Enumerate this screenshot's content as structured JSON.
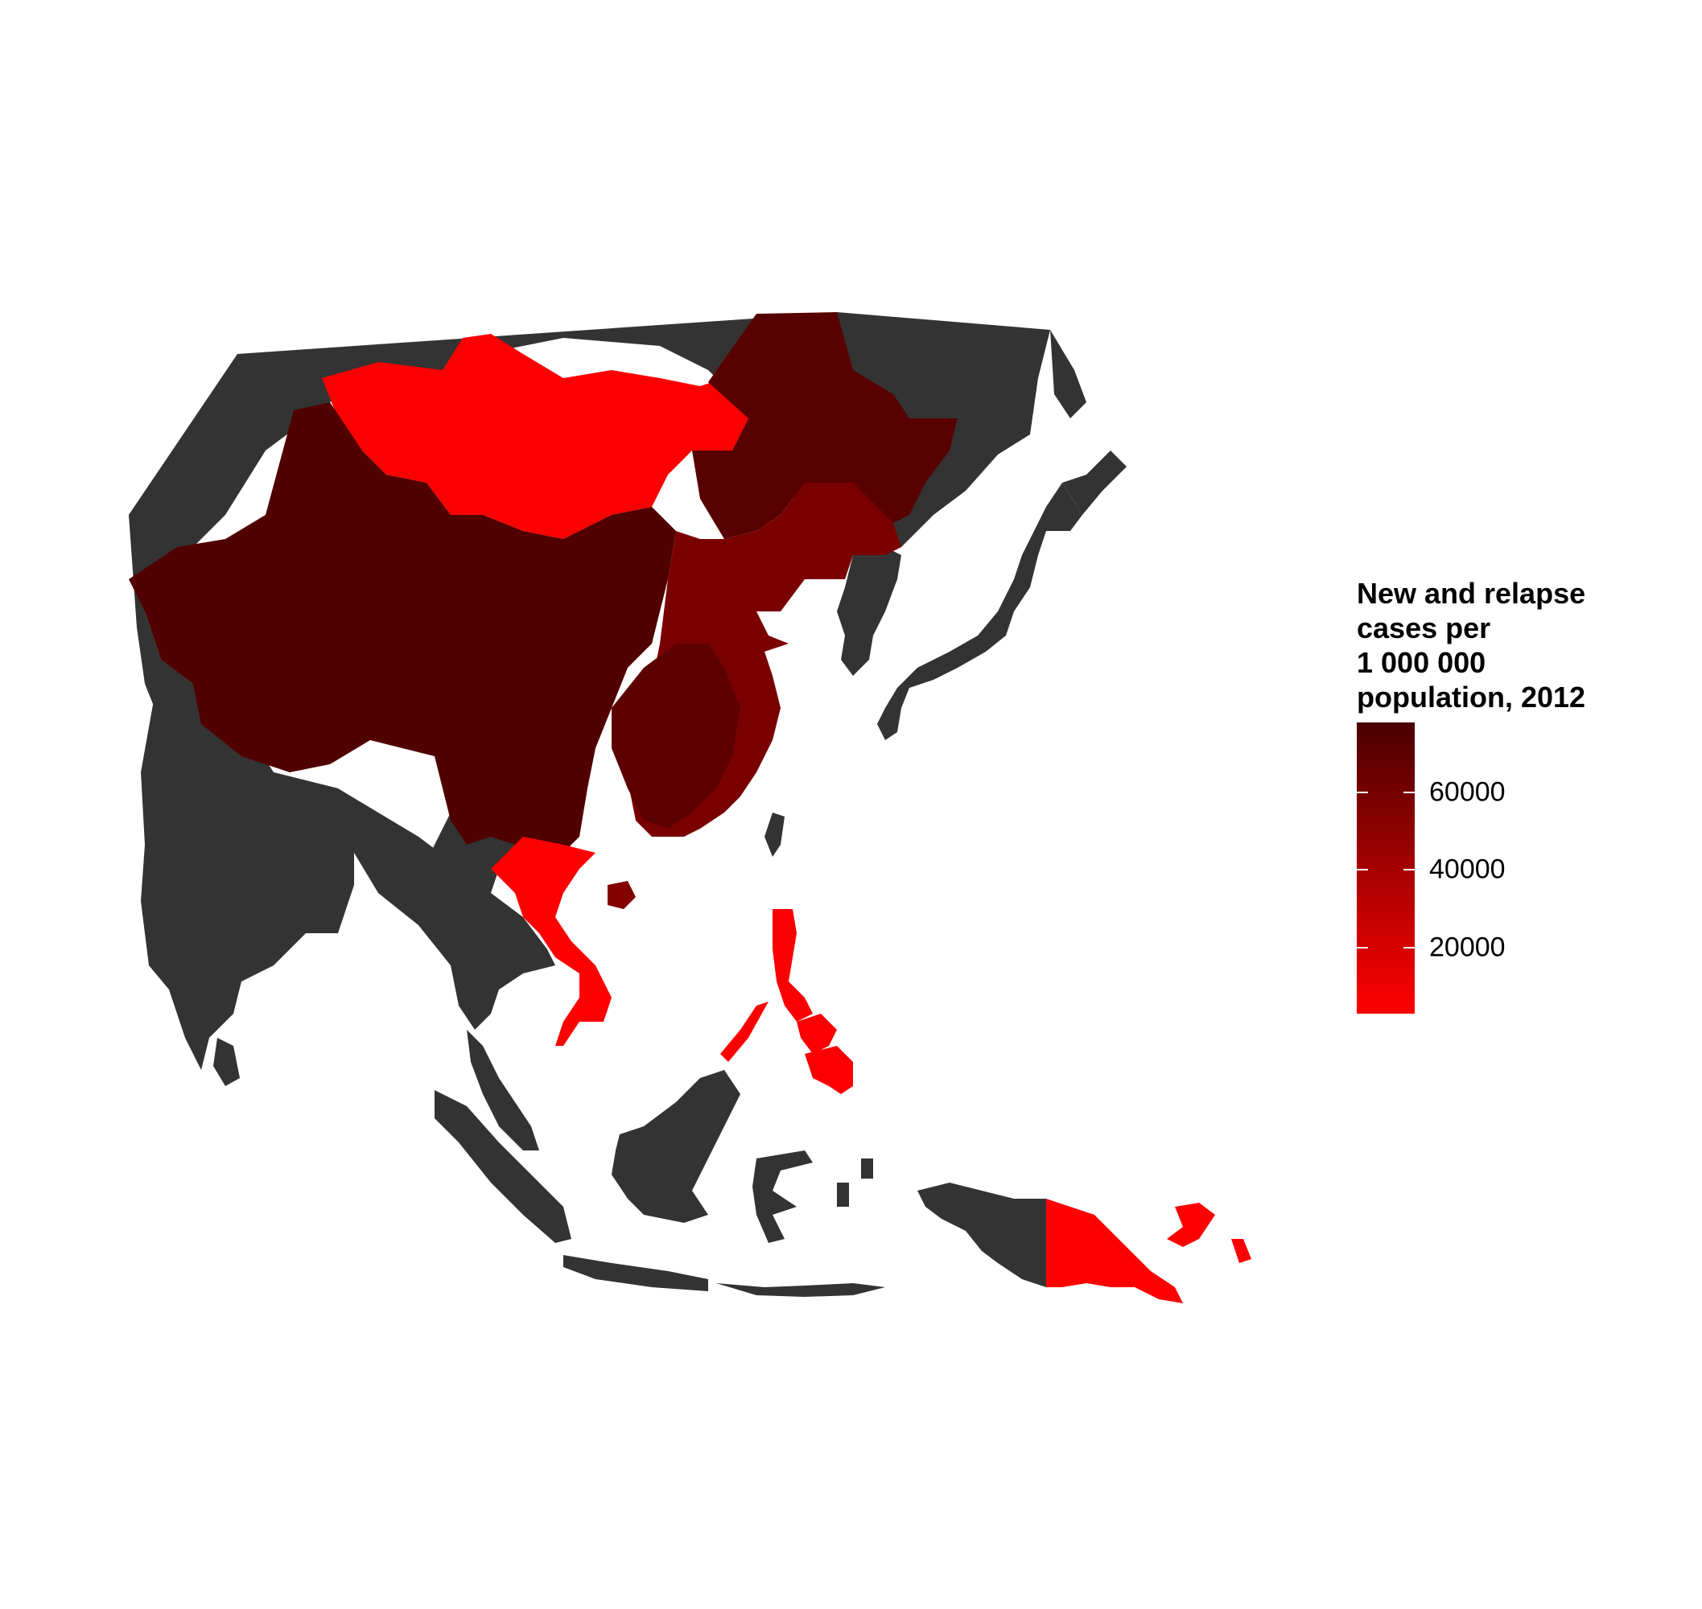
{
  "legend": {
    "title_lines": [
      "New and relapse",
      "cases per",
      "1 000 000",
      "population, 2012"
    ],
    "color_low": "#ff0000",
    "color_high": "#4a0000",
    "range": [
      3000,
      78000
    ],
    "ticks": [
      {
        "value": 20000,
        "label": "20000"
      },
      {
        "value": 40000,
        "label": "40000"
      },
      {
        "value": 60000,
        "label": "60000"
      }
    ]
  },
  "colors": {
    "no_data": "#333333",
    "background": "#ffffff"
  },
  "map": {
    "regions": [
      {
        "id": "russia-far-east",
        "value": null
      },
      {
        "id": "india",
        "value": null
      },
      {
        "id": "kazakhstan-central-asia",
        "value": null
      },
      {
        "id": "sri-lanka",
        "value": null
      },
      {
        "id": "myanmar-thailand-laos-cambodia",
        "value": null
      },
      {
        "id": "malay-peninsula",
        "value": null
      },
      {
        "id": "sumatra",
        "value": null
      },
      {
        "id": "java",
        "value": null
      },
      {
        "id": "borneo",
        "value": null
      },
      {
        "id": "sulawesi",
        "value": null
      },
      {
        "id": "new-guinea-west",
        "value": null
      },
      {
        "id": "korea",
        "value": null
      },
      {
        "id": "japan",
        "value": null
      },
      {
        "id": "taiwan",
        "value": null
      },
      {
        "id": "mongolia",
        "value": 5000
      },
      {
        "id": "china-west",
        "value": 75000
      },
      {
        "id": "china-northeast",
        "value": 72000
      },
      {
        "id": "china-east-coast",
        "value": 58000
      },
      {
        "id": "china-south-central",
        "value": 70000
      },
      {
        "id": "hainan",
        "value": 55000
      },
      {
        "id": "vietnam",
        "value": 4000
      },
      {
        "id": "philippines",
        "value": 5000
      },
      {
        "id": "papua-new-guinea",
        "value": 4000
      }
    ]
  }
}
